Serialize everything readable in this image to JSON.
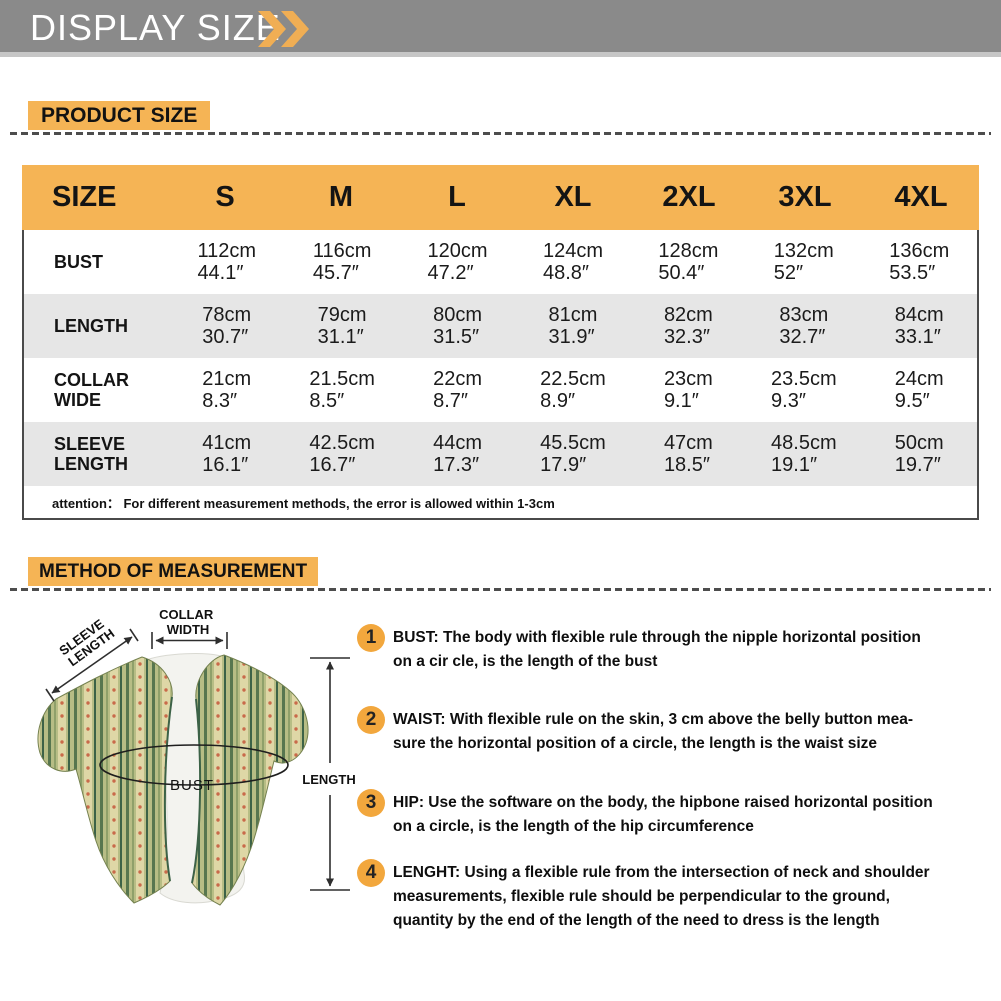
{
  "header": {
    "title": "DISPLAY SIZE",
    "chevron_icon": "double-chevron-right"
  },
  "colors": {
    "banner_gray": "#8A8A8A",
    "accent_orange": "#F5B455",
    "badge_orange": "#F2A73D",
    "row_gray": "#E6E6E6",
    "dash_gray": "#4D4D4D"
  },
  "product_size_section": {
    "label": "PRODUCT SIZE"
  },
  "size_table": {
    "columns": [
      "SIZE",
      "S",
      "M",
      "L",
      "XL",
      "2XL",
      "3XL",
      "4XL"
    ],
    "rows": [
      {
        "label_lines": [
          "BUST"
        ],
        "cells": [
          {
            "cm": "112cm",
            "in": "44.1″"
          },
          {
            "cm": "116cm",
            "in": "45.7″"
          },
          {
            "cm": "120cm",
            "in": "47.2″"
          },
          {
            "cm": "124cm",
            "in": "48.8″"
          },
          {
            "cm": "128cm",
            "in": "50.4″"
          },
          {
            "cm": "132cm",
            "in": "52″"
          },
          {
            "cm": "136cm",
            "in": "53.5″"
          }
        ]
      },
      {
        "label_lines": [
          "LENGTH"
        ],
        "cells": [
          {
            "cm": "78cm",
            "in": "30.7″"
          },
          {
            "cm": "79cm",
            "in": "31.1″"
          },
          {
            "cm": "80cm",
            "in": "31.5″"
          },
          {
            "cm": "81cm",
            "in": "31.9″"
          },
          {
            "cm": "82cm",
            "in": "32.3″"
          },
          {
            "cm": "83cm",
            "in": "32.7″"
          },
          {
            "cm": "84cm",
            "in": "33.1″"
          }
        ]
      },
      {
        "label_lines": [
          "COLLAR",
          "WIDE"
        ],
        "cells": [
          {
            "cm": "21cm",
            "in": "8.3″"
          },
          {
            "cm": "21.5cm",
            "in": "8.5″"
          },
          {
            "cm": "22cm",
            "in": "8.7″"
          },
          {
            "cm": "22.5cm",
            "in": "8.9″"
          },
          {
            "cm": "23cm",
            "in": "9.1″"
          },
          {
            "cm": "23.5cm",
            "in": "9.3″"
          },
          {
            "cm": "24cm",
            "in": "9.5″"
          }
        ]
      },
      {
        "label_lines": [
          "SLEEVE",
          "LENGTH"
        ],
        "cells": [
          {
            "cm": "41cm",
            "in": "16.1″"
          },
          {
            "cm": "42.5cm",
            "in": "16.7″"
          },
          {
            "cm": "44cm",
            "in": "17.3″"
          },
          {
            "cm": "45.5cm",
            "in": "17.9″"
          },
          {
            "cm": "47cm",
            "in": "18.5″"
          },
          {
            "cm": "48.5cm",
            "in": "19.1″"
          },
          {
            "cm": "50cm",
            "in": "19.7″"
          }
        ]
      }
    ],
    "attention": "attention：  For different measurement methods, the error is allowed within 1-3cm"
  },
  "method_section": {
    "label": "METHOD OF MEASUREMENT",
    "diagram": {
      "collar_label_lines": [
        "COLLAR",
        "WIDTH"
      ],
      "sleeve_label_lines": [
        "SLEEVE",
        "LENGTH"
      ],
      "bust_label": "BUST",
      "length_label": "LENGTH"
    },
    "items": [
      {
        "num": "1",
        "lines": [
          "BUST: The body with flexible rule through the nipple horizontal position",
          "on a cir cle, is the length of the bust"
        ]
      },
      {
        "num": "2",
        "lines": [
          "WAIST: With flexible rule on the skin, 3 cm above the belly button mea-",
          "sure the horizontal position of a circle, the length is the waist size"
        ]
      },
      {
        "num": "3",
        "lines": [
          "HIP: Use the software on the body, the hipbone raised horizontal position",
          "on a circle, is the length of the hip circumference"
        ]
      },
      {
        "num": "4",
        "lines": [
          "LENGHT: Using a flexible rule from the intersection of neck and shoulder",
          "measurements, flexible rule should be perpendicular to the ground,",
          "quantity by the end of the length of the need to dress is the length"
        ]
      }
    ]
  }
}
